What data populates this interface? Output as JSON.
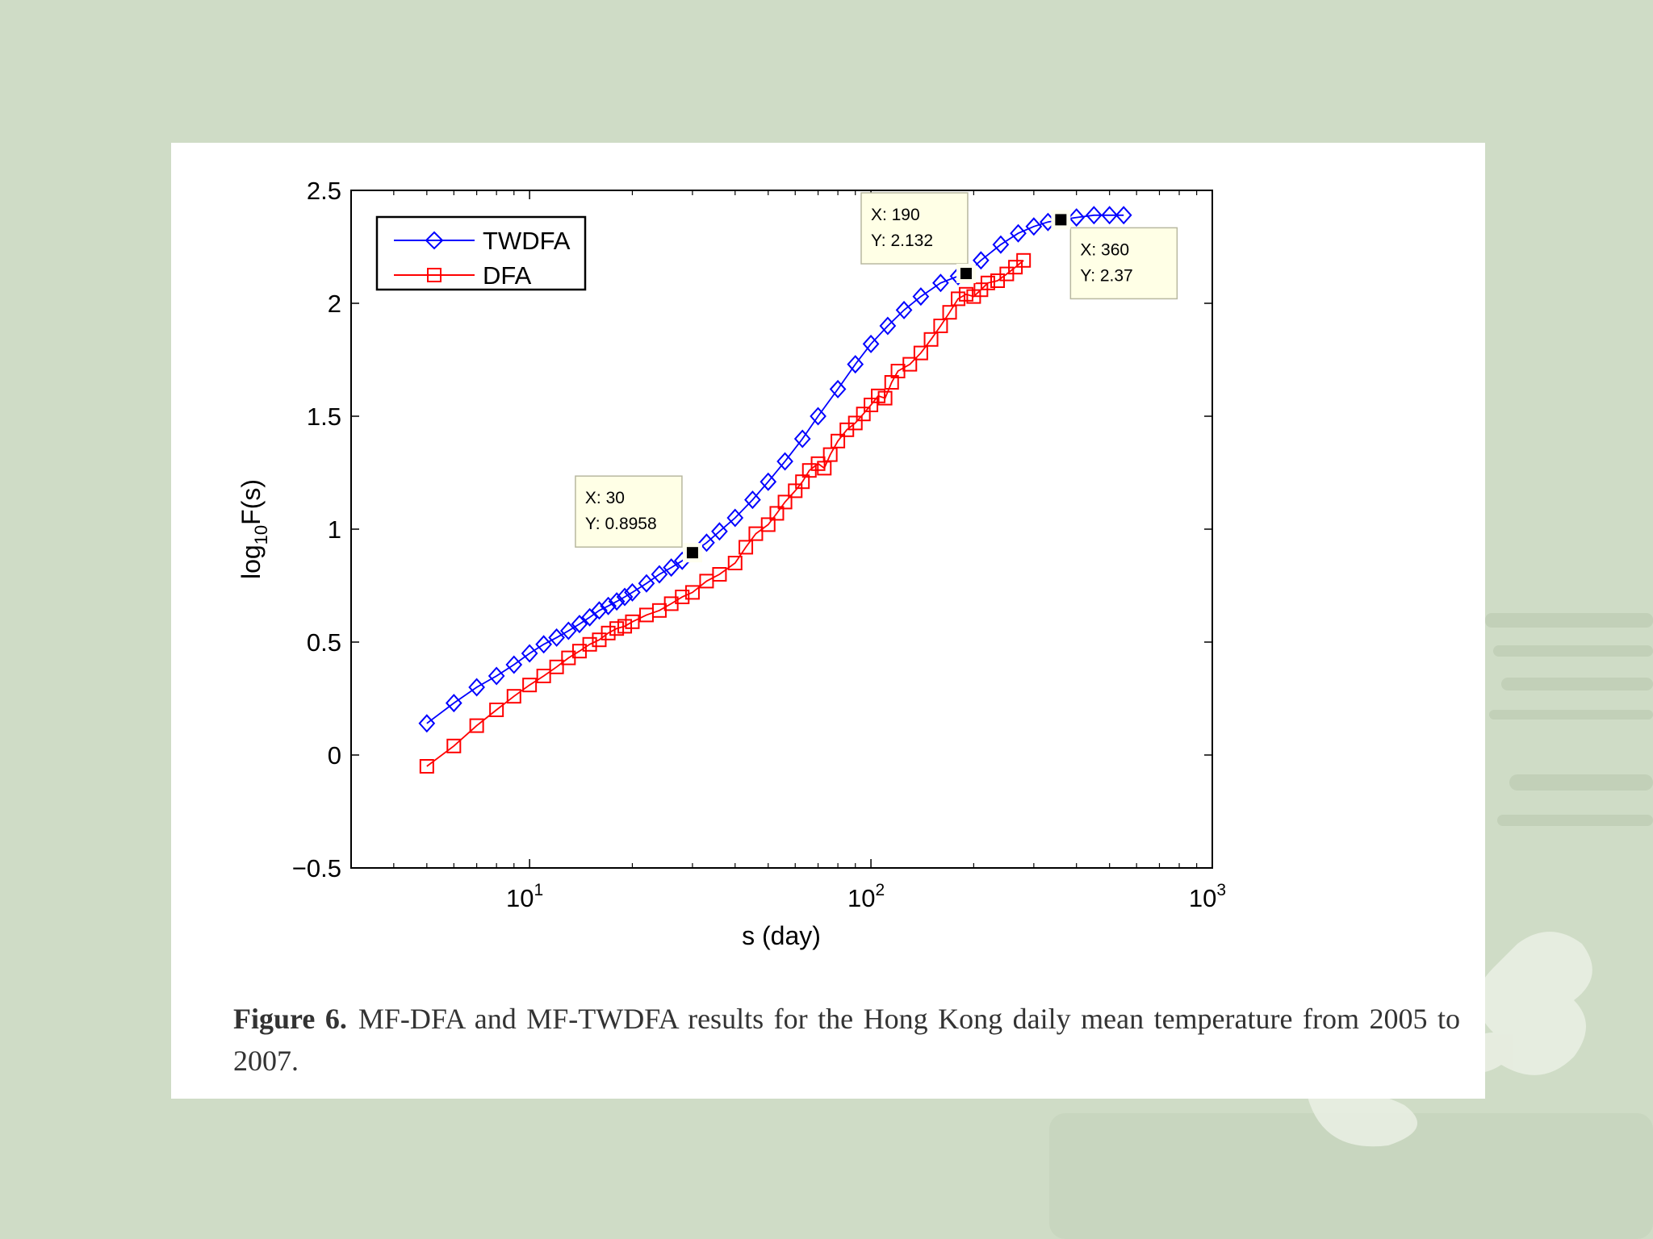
{
  "slide": {
    "colors": {
      "background": "#cfdcc6",
      "card": "#ffffff"
    }
  },
  "caption": {
    "label": "Figure 6.",
    "text": "MF-DFA and MF-TWDFA results for the Hong Kong daily mean temperature from 2005 to 2007."
  },
  "chart_data": {
    "type": "scatter",
    "title": "",
    "xlabel": "s (day)",
    "ylabel": "log10F(s)",
    "xscale": "log",
    "xlim": [
      3,
      1000
    ],
    "ylim": [
      -0.5,
      2.5
    ],
    "x_ticks": [
      {
        "value": 10,
        "base": "10",
        "exp": "1"
      },
      {
        "value": 100,
        "base": "10",
        "exp": "2"
      },
      {
        "value": 1000,
        "base": "10",
        "exp": "3"
      }
    ],
    "y_ticks": [
      {
        "value": -0.5,
        "label": "−0.5"
      },
      {
        "value": 0,
        "label": "0"
      },
      {
        "value": 0.5,
        "label": "0.5"
      },
      {
        "value": 1,
        "label": "1"
      },
      {
        "value": 1.5,
        "label": "1.5"
      },
      {
        "value": 2,
        "label": "2"
      },
      {
        "value": 2.5,
        "label": "2.5"
      }
    ],
    "grid": false,
    "legend_position": "top-left",
    "series": [
      {
        "name": "TWDFA",
        "marker": "diamond",
        "color": "#0000ff",
        "points": [
          [
            5,
            0.14
          ],
          [
            6,
            0.23
          ],
          [
            7,
            0.3
          ],
          [
            8,
            0.35
          ],
          [
            9,
            0.4
          ],
          [
            10,
            0.45
          ],
          [
            11,
            0.49
          ],
          [
            12,
            0.52
          ],
          [
            13,
            0.55
          ],
          [
            14,
            0.58
          ],
          [
            15,
            0.61
          ],
          [
            16,
            0.64
          ],
          [
            17,
            0.66
          ],
          [
            18,
            0.68
          ],
          [
            19,
            0.7
          ],
          [
            20,
            0.72
          ],
          [
            22,
            0.76
          ],
          [
            24,
            0.8
          ],
          [
            26,
            0.83
          ],
          [
            28,
            0.86
          ],
          [
            30,
            0.8958
          ],
          [
            33,
            0.94
          ],
          [
            36,
            0.99
          ],
          [
            40,
            1.05
          ],
          [
            45,
            1.13
          ],
          [
            50,
            1.21
          ],
          [
            56,
            1.3
          ],
          [
            63,
            1.4
          ],
          [
            70,
            1.5
          ],
          [
            80,
            1.62
          ],
          [
            90,
            1.73
          ],
          [
            100,
            1.82
          ],
          [
            112,
            1.9
          ],
          [
            125,
            1.97
          ],
          [
            140,
            2.03
          ],
          [
            160,
            2.09
          ],
          [
            180,
            2.12
          ],
          [
            190,
            2.132
          ],
          [
            210,
            2.19
          ],
          [
            240,
            2.26
          ],
          [
            270,
            2.31
          ],
          [
            300,
            2.34
          ],
          [
            330,
            2.36
          ],
          [
            360,
            2.37
          ],
          [
            400,
            2.38
          ],
          [
            450,
            2.39
          ],
          [
            500,
            2.39
          ],
          [
            550,
            2.39
          ]
        ]
      },
      {
        "name": "DFA",
        "marker": "square",
        "color": "#ff0000",
        "points": [
          [
            5,
            -0.05
          ],
          [
            6,
            0.04
          ],
          [
            7,
            0.13
          ],
          [
            8,
            0.2
          ],
          [
            9,
            0.26
          ],
          [
            10,
            0.31
          ],
          [
            11,
            0.35
          ],
          [
            12,
            0.39
          ],
          [
            13,
            0.43
          ],
          [
            14,
            0.46
          ],
          [
            15,
            0.49
          ],
          [
            16,
            0.51
          ],
          [
            17,
            0.54
          ],
          [
            18,
            0.56
          ],
          [
            19,
            0.57
          ],
          [
            20,
            0.59
          ],
          [
            22,
            0.62
          ],
          [
            24,
            0.64
          ],
          [
            26,
            0.67
          ],
          [
            28,
            0.7
          ],
          [
            30,
            0.72
          ],
          [
            33,
            0.77
          ],
          [
            36,
            0.8
          ],
          [
            40,
            0.85
          ],
          [
            43,
            0.92
          ],
          [
            46,
            0.98
          ],
          [
            50,
            1.02
          ],
          [
            53,
            1.07
          ],
          [
            56,
            1.12
          ],
          [
            60,
            1.17
          ],
          [
            63,
            1.21
          ],
          [
            66,
            1.26
          ],
          [
            70,
            1.29
          ],
          [
            73,
            1.27
          ],
          [
            76,
            1.33
          ],
          [
            80,
            1.39
          ],
          [
            85,
            1.44
          ],
          [
            90,
            1.47
          ],
          [
            95,
            1.51
          ],
          [
            100,
            1.55
          ],
          [
            105,
            1.59
          ],
          [
            110,
            1.58
          ],
          [
            115,
            1.65
          ],
          [
            120,
            1.7
          ],
          [
            130,
            1.73
          ],
          [
            140,
            1.78
          ],
          [
            150,
            1.84
          ],
          [
            160,
            1.9
          ],
          [
            170,
            1.96
          ],
          [
            180,
            2.02
          ],
          [
            190,
            2.04
          ],
          [
            200,
            2.03
          ],
          [
            210,
            2.06
          ],
          [
            220,
            2.09
          ],
          [
            235,
            2.1
          ],
          [
            250,
            2.13
          ],
          [
            265,
            2.16
          ],
          [
            280,
            2.19
          ]
        ]
      }
    ],
    "annotations": [
      {
        "x": 30,
        "y": 0.8958,
        "line1": "X: 30",
        "line2": "Y: 0.8958"
      },
      {
        "x": 190,
        "y": 2.132,
        "line1": "X: 190",
        "line2": "Y: 2.132"
      },
      {
        "x": 360,
        "y": 2.37,
        "line1": "X: 360",
        "line2": "Y: 2.37"
      }
    ]
  }
}
